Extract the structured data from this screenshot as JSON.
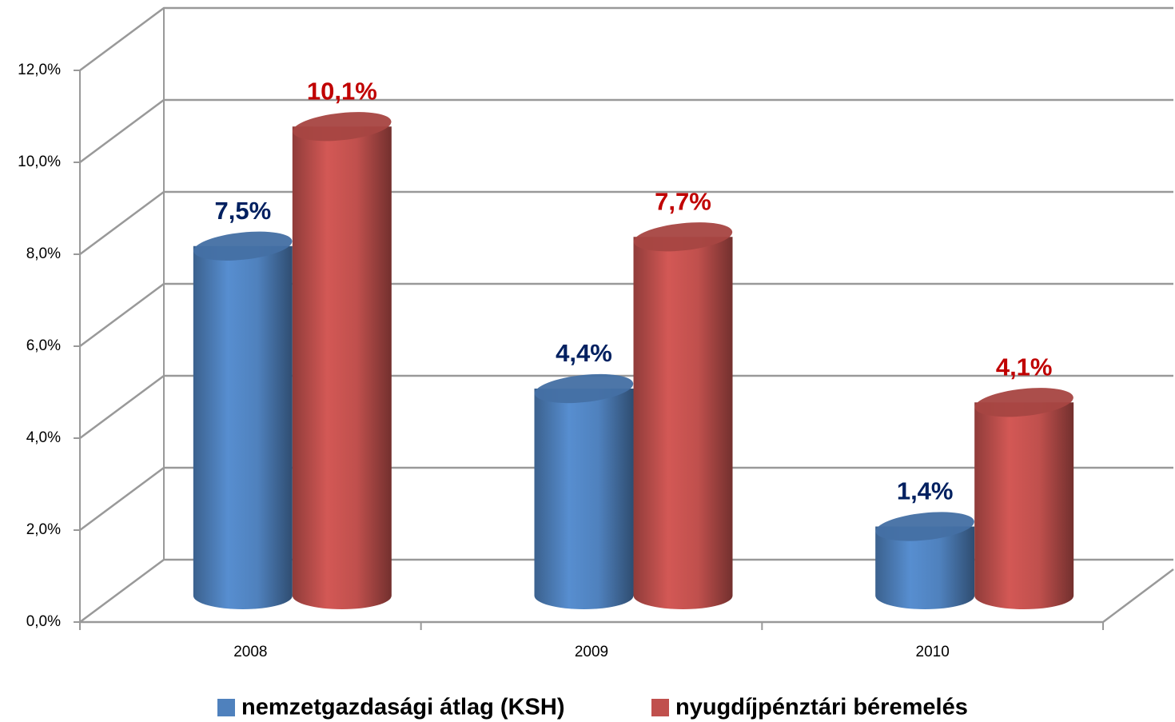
{
  "chart_data": {
    "type": "bar3d-cylinder",
    "categories": [
      "2008",
      "2009",
      "2010"
    ],
    "series": [
      {
        "name": "nemzetgazdasági átlag (KSH)",
        "color": "#4f81bd",
        "label_color": "#002060",
        "values": [
          7.5,
          4.4,
          1.4
        ],
        "value_labels": [
          "7,5%",
          "4,4%",
          "1,4%"
        ]
      },
      {
        "name": "nyugdíjpénztári béremelés",
        "color": "#c0504d",
        "label_color": "#c00000",
        "values": [
          10.1,
          7.7,
          4.1
        ],
        "value_labels": [
          "10,1%",
          "7,7%",
          "4,1%"
        ]
      }
    ],
    "ylim": [
      0,
      12
    ],
    "yticks": [
      {
        "value": 0,
        "label": "0,0%"
      },
      {
        "value": 2,
        "label": "2,0%"
      },
      {
        "value": 4,
        "label": "4,0%"
      },
      {
        "value": 6,
        "label": "6,0%"
      },
      {
        "value": 8,
        "label": "8,0%"
      },
      {
        "value": 10,
        "label": "10,0%"
      },
      {
        "value": 12,
        "label": "12,0%"
      }
    ],
    "grid": true,
    "legend": "bottom"
  }
}
